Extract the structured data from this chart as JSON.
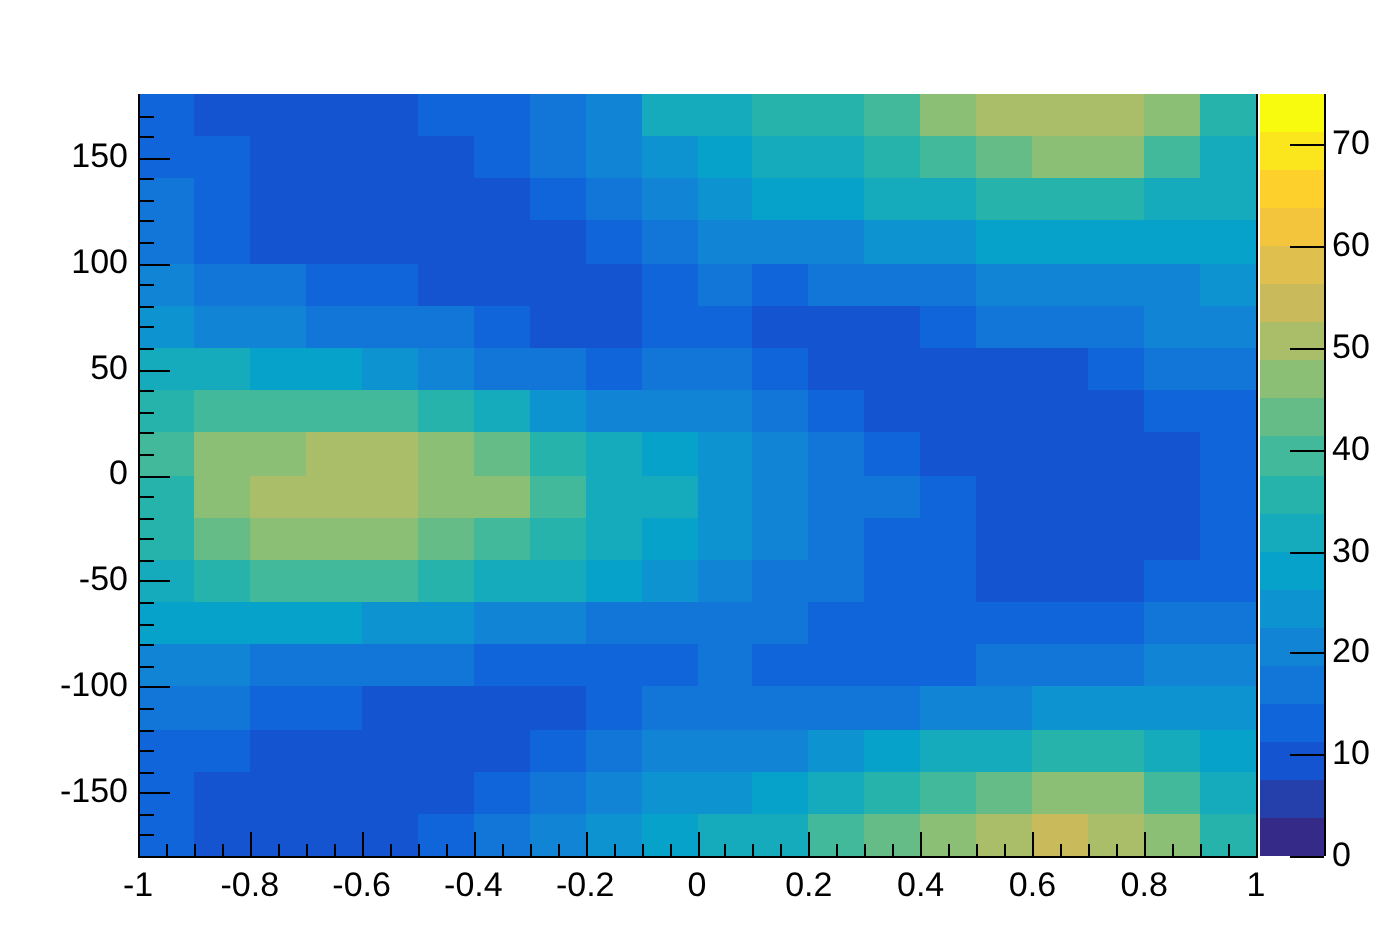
{
  "chart_data": {
    "type": "heatmap",
    "x": [
      -0.95,
      -0.85,
      -0.75,
      -0.65,
      -0.55,
      -0.45,
      -0.35,
      -0.25,
      -0.15,
      -0.05,
      0.05,
      0.15,
      0.25,
      0.35,
      0.45,
      0.55,
      0.65,
      0.75,
      0.85,
      0.95
    ],
    "y": [
      170,
      150,
      130,
      110,
      90,
      70,
      50,
      30,
      10,
      -10,
      -30,
      -50,
      -70,
      -90,
      -110,
      -130,
      -150,
      -170
    ],
    "cells": [
      [
        13,
        11,
        10,
        10,
        10,
        12,
        14,
        16,
        22,
        30,
        30,
        35,
        35,
        40,
        45,
        50,
        52,
        50,
        45,
        35
      ],
      [
        14,
        12,
        9,
        9,
        10,
        11,
        13,
        16,
        20,
        25,
        28,
        30,
        32,
        35,
        40,
        42,
        45,
        45,
        40,
        33
      ],
      [
        15,
        12,
        10,
        9,
        9,
        10,
        11,
        13,
        16,
        20,
        25,
        27,
        28,
        30,
        32,
        35,
        35,
        35,
        32,
        30
      ],
      [
        16,
        14,
        11,
        10,
        9,
        9,
        10,
        11,
        13,
        16,
        20,
        20,
        22,
        24,
        25,
        27,
        28,
        28,
        27,
        27
      ],
      [
        20,
        17,
        15,
        13,
        12,
        11,
        10,
        9,
        10,
        12,
        15,
        14,
        15,
        17,
        18,
        20,
        22,
        22,
        22,
        23
      ],
      [
        24,
        22,
        20,
        18,
        17,
        15,
        13,
        11,
        10,
        12,
        12,
        10,
        10,
        11,
        13,
        15,
        16,
        18,
        19,
        20
      ],
      [
        30,
        30,
        28,
        27,
        25,
        22,
        18,
        15,
        13,
        15,
        16,
        13,
        11,
        10,
        10,
        10,
        11,
        13,
        15,
        17
      ],
      [
        35,
        40,
        38,
        38,
        38,
        35,
        30,
        25,
        20,
        22,
        20,
        16,
        13,
        11,
        10,
        9,
        9,
        10,
        12,
        14
      ],
      [
        38,
        45,
        48,
        50,
        52,
        48,
        42,
        35,
        30,
        28,
        24,
        20,
        16,
        13,
        11,
        9,
        8,
        9,
        11,
        13
      ],
      [
        35,
        45,
        50,
        52,
        50,
        48,
        45,
        38,
        33,
        30,
        26,
        22,
        18,
        15,
        12,
        10,
        9,
        9,
        10,
        12
      ],
      [
        35,
        42,
        45,
        45,
        45,
        42,
        40,
        35,
        30,
        28,
        24,
        20,
        17,
        14,
        12,
        10,
        9,
        9,
        10,
        13
      ],
      [
        33,
        37,
        38,
        38,
        38,
        35,
        32,
        30,
        27,
        25,
        20,
        18,
        15,
        13,
        12,
        11,
        10,
        10,
        12,
        14
      ],
      [
        28,
        28,
        28,
        27,
        25,
        23,
        22,
        20,
        18,
        17,
        17,
        15,
        13,
        12,
        12,
        12,
        12,
        13,
        15,
        17
      ],
      [
        22,
        20,
        18,
        17,
        16,
        15,
        14,
        13,
        13,
        14,
        15,
        14,
        13,
        13,
        14,
        15,
        17,
        18,
        20,
        20
      ],
      [
        17,
        15,
        13,
        12,
        11,
        11,
        11,
        11,
        13,
        15,
        17,
        17,
        17,
        18,
        20,
        22,
        25,
        25,
        25,
        24
      ],
      [
        14,
        12,
        10,
        10,
        9,
        10,
        11,
        13,
        16,
        19,
        21,
        22,
        24,
        27,
        30,
        33,
        35,
        35,
        32,
        28
      ],
      [
        13,
        11,
        9,
        9,
        10,
        11,
        13,
        16,
        20,
        24,
        26,
        28,
        32,
        35,
        40,
        43,
        47,
        47,
        40,
        33
      ],
      [
        13,
        11,
        9,
        10,
        11,
        13,
        16,
        19,
        23,
        28,
        30,
        33,
        38,
        42,
        48,
        52,
        55,
        52,
        45,
        35
      ]
    ],
    "xlim": [
      -1,
      1
    ],
    "xticks": [
      -1,
      {
        "value": -0.95,
        "label": null
      },
      {
        "value": -0.9,
        "label": null
      },
      {
        "value": -0.85,
        "label": null
      },
      -0.8,
      {
        "value": -0.75,
        "label": null
      },
      {
        "value": -0.7,
        "label": null
      },
      {
        "value": -0.65,
        "label": null
      },
      -0.6,
      {
        "value": -0.55,
        "label": null
      },
      {
        "value": -0.5,
        "label": null
      },
      {
        "value": -0.45,
        "label": null
      },
      -0.4,
      {
        "value": -0.35,
        "label": null
      },
      {
        "value": -0.3,
        "label": null
      },
      {
        "value": -0.25,
        "label": null
      },
      -0.2,
      {
        "value": -0.15,
        "label": null
      },
      {
        "value": -0.1,
        "label": null
      },
      {
        "value": -0.05,
        "label": null
      },
      0,
      {
        "value": 0.05,
        "label": null
      },
      {
        "value": 0.1,
        "label": null
      },
      {
        "value": 0.15,
        "label": null
      },
      0.2,
      {
        "value": 0.25,
        "label": null
      },
      {
        "value": 0.3,
        "label": null
      },
      {
        "value": 0.35,
        "label": null
      },
      0.4,
      {
        "value": 0.45,
        "label": null
      },
      {
        "value": 0.5,
        "label": null
      },
      {
        "value": 0.55,
        "label": null
      },
      0.6,
      {
        "value": 0.65,
        "label": null
      },
      {
        "value": 0.7,
        "label": null
      },
      {
        "value": 0.75,
        "label": null
      },
      0.8,
      {
        "value": 0.85,
        "label": null
      },
      {
        "value": 0.9,
        "label": null
      },
      {
        "value": 0.95,
        "label": null
      },
      1
    ],
    "ylim": [
      -180,
      180
    ],
    "yticks": [
      {
        "value": -170,
        "label": null
      },
      {
        "value": -160,
        "label": null
      },
      -150,
      {
        "value": -140,
        "label": null
      },
      {
        "value": -130,
        "label": null
      },
      {
        "value": -120,
        "label": null
      },
      {
        "value": -110,
        "label": null
      },
      -100,
      {
        "value": -90,
        "label": null
      },
      {
        "value": -80,
        "label": null
      },
      {
        "value": -70,
        "label": null
      },
      {
        "value": -60,
        "label": null
      },
      -50,
      {
        "value": -40,
        "label": null
      },
      {
        "value": -30,
        "label": null
      },
      {
        "value": -20,
        "label": null
      },
      {
        "value": -10,
        "label": null
      },
      0,
      {
        "value": 10,
        "label": null
      },
      {
        "value": 20,
        "label": null
      },
      {
        "value": 30,
        "label": null
      },
      {
        "value": 40,
        "label": null
      },
      50,
      {
        "value": 60,
        "label": null
      },
      {
        "value": 70,
        "label": null
      },
      {
        "value": 80,
        "label": null
      },
      {
        "value": 90,
        "label": null
      },
      100,
      {
        "value": 110,
        "label": null
      },
      {
        "value": 120,
        "label": null
      },
      {
        "value": 130,
        "label": null
      },
      {
        "value": 140,
        "label": null
      },
      150,
      {
        "value": 160,
        "label": null
      },
      {
        "value": 170,
        "label": null
      }
    ],
    "clim": [
      0,
      75
    ],
    "cticks": [
      0,
      10,
      20,
      30,
      40,
      50,
      60,
      70
    ]
  }
}
